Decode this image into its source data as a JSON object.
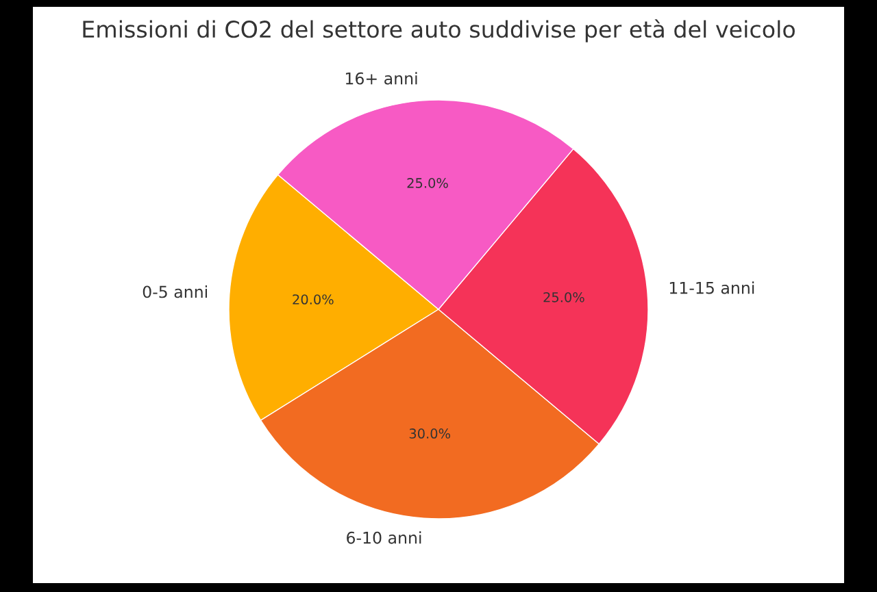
{
  "chart_data": {
    "type": "pie",
    "title": "Emissioni di CO2 del settore auto suddivise per età del veicolo",
    "categories": [
      "0-5 anni",
      "6-10 anni",
      "11-15 anni",
      "16+ anni"
    ],
    "values": [
      20,
      30,
      25,
      25
    ],
    "value_labels": [
      "20.0%",
      "30.0%",
      "25.0%",
      "25.0%"
    ],
    "colors": [
      "#ffae00",
      "#f26b21",
      "#f53358",
      "#f75ac4"
    ]
  }
}
